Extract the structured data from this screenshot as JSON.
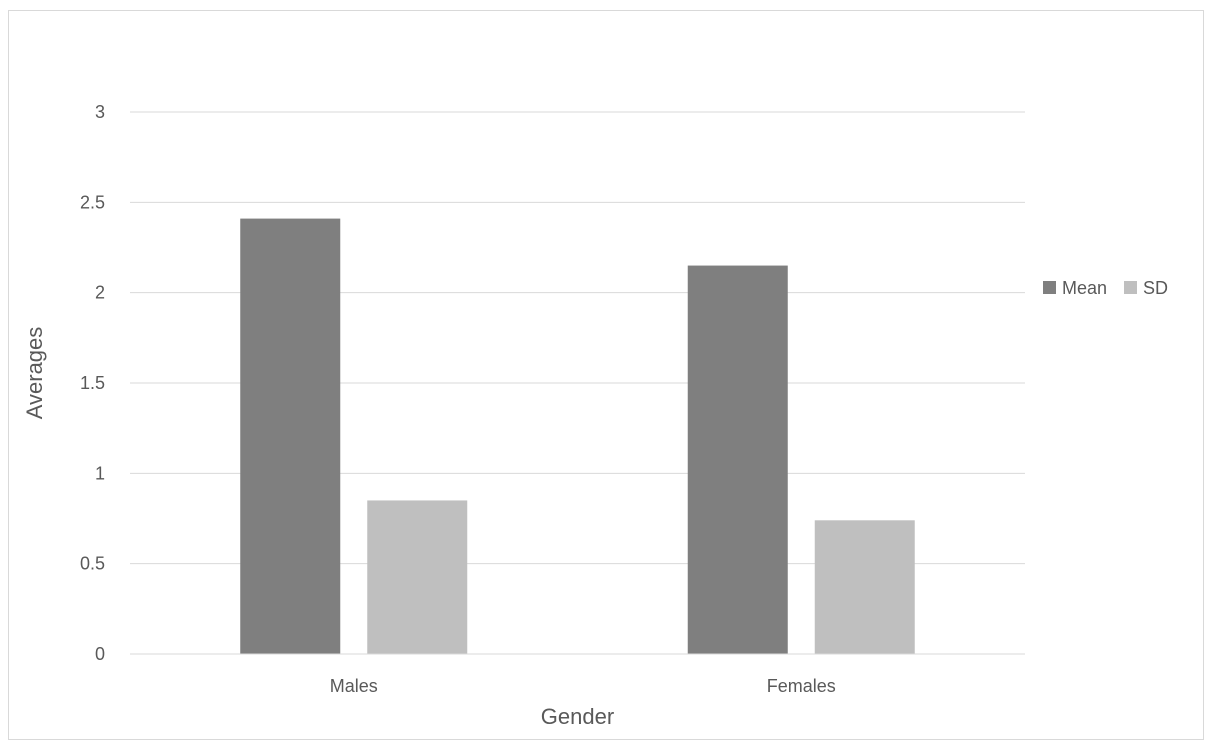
{
  "chart_data": {
    "type": "bar",
    "title": "",
    "xlabel": "Gender",
    "ylabel": "Averages",
    "categories": [
      "Males",
      "Females"
    ],
    "series": [
      {
        "name": "Mean",
        "values": [
          2.41,
          2.15
        ],
        "color": "#7f7f7f"
      },
      {
        "name": "SD",
        "values": [
          0.85,
          0.74
        ],
        "color": "#bfbfbf"
      }
    ],
    "ylim": [
      0,
      3
    ],
    "yticks": [
      "0",
      "0.5",
      "1",
      "1.5",
      "2",
      "2.5",
      "3"
    ],
    "grid": true,
    "legend_position": "right"
  }
}
